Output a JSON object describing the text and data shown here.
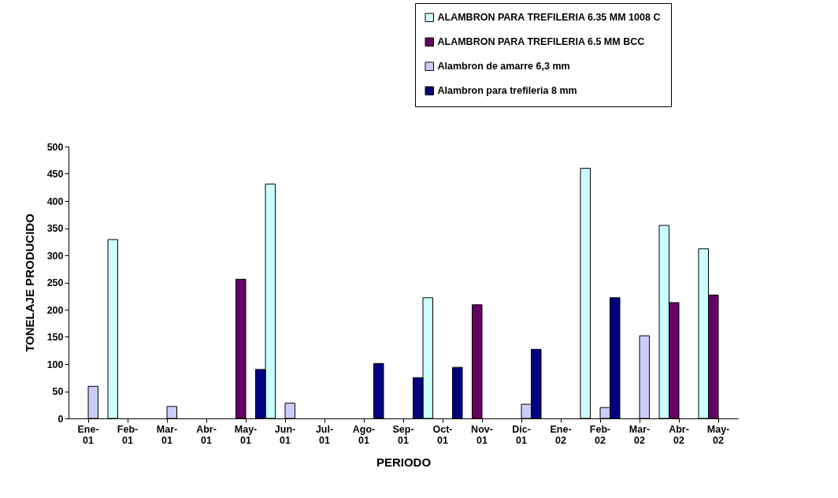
{
  "chart_data": {
    "type": "bar",
    "xlabel": "PERIODO",
    "ylabel": "TONELAJE PRODUCIDO",
    "categories": [
      "Ene-01",
      "Feb-01",
      "Mar-01",
      "Abr-01",
      "May-01",
      "Jun-01",
      "Jul-01",
      "Ago-01",
      "Sep-01",
      "Oct-01",
      "Nov-01",
      "Dic-01",
      "Ene-02",
      "Feb-02",
      "Mar-02",
      "Abr-02",
      "May-02"
    ],
    "series": [
      {
        "name": "ALAMBRON PARA TREFILERIA 6.35 MM 1008 C",
        "color": "#ccffff",
        "values": [
          null,
          329,
          null,
          null,
          null,
          431,
          null,
          null,
          null,
          222,
          null,
          null,
          null,
          460,
          null,
          355,
          312
        ]
      },
      {
        "name": "ALAMBRON PARA TREFILERIA 6.5 MM BCC",
        "color": "#660066",
        "values": [
          null,
          null,
          null,
          null,
          256,
          null,
          null,
          null,
          null,
          null,
          209,
          null,
          null,
          null,
          null,
          213,
          227
        ]
      },
      {
        "name": "Alambron de amarre 6,3 mm",
        "color": "#ccccff",
        "values": [
          59,
          null,
          22,
          null,
          null,
          28,
          null,
          null,
          null,
          null,
          null,
          26,
          null,
          20,
          152,
          null,
          null
        ]
      },
      {
        "name": "Alambron para trefileria 8 mm",
        "color": "#000080",
        "values": [
          null,
          null,
          null,
          null,
          90,
          null,
          null,
          101,
          75,
          94,
          null,
          127,
          null,
          222,
          null,
          null,
          null
        ]
      }
    ],
    "ylim": [
      0,
      500
    ],
    "yticks": [
      0,
      50,
      100,
      150,
      200,
      250,
      300,
      350,
      400,
      450,
      500
    ],
    "grid": false,
    "legend": "top right"
  }
}
